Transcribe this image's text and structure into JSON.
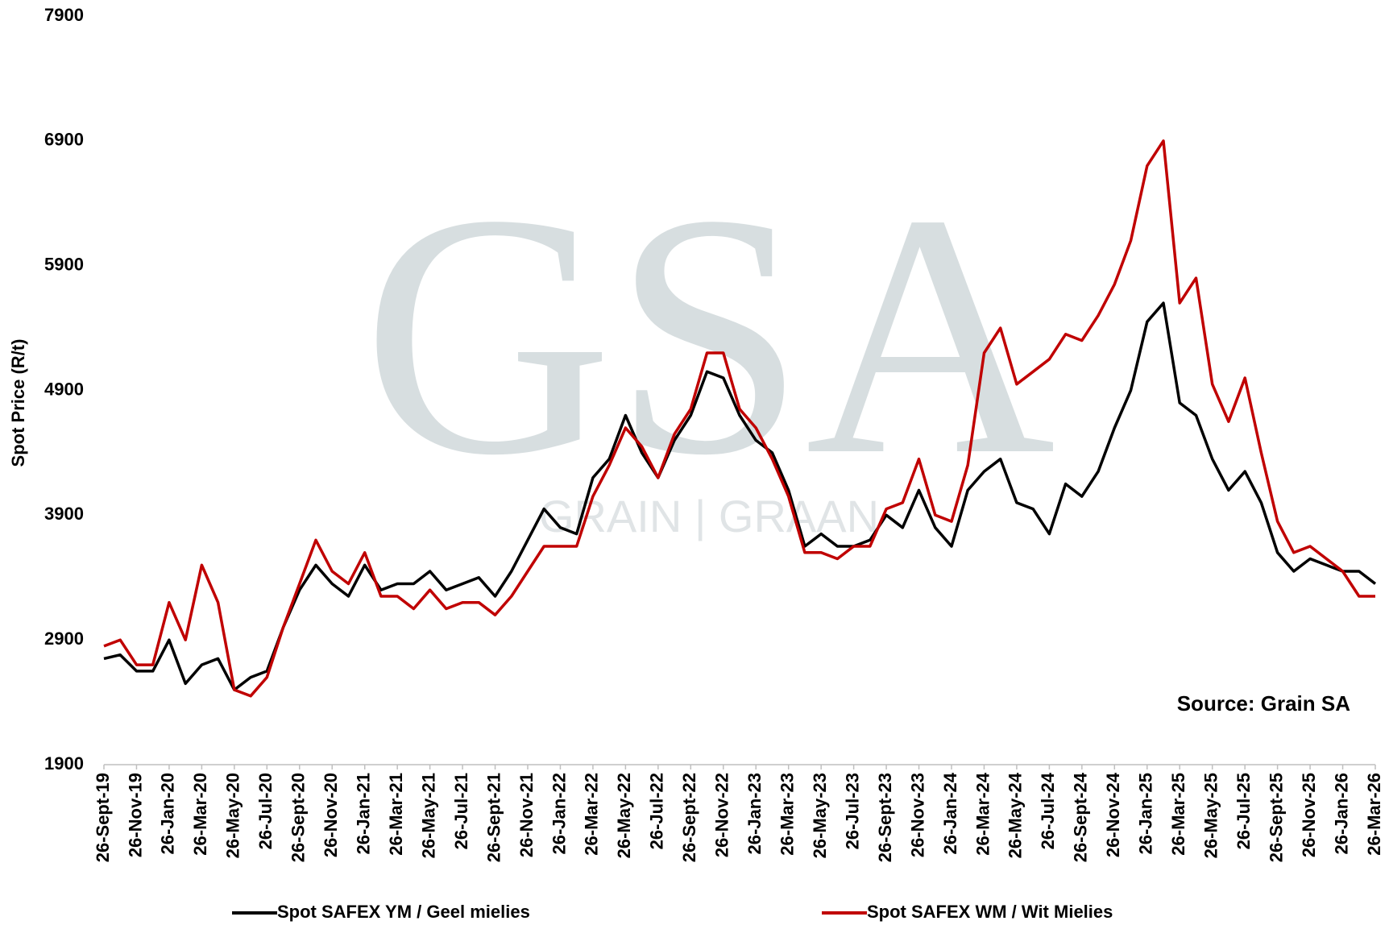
{
  "chart_data": {
    "type": "line",
    "y_label": "Spot Price (R/t)",
    "annotation": "Source: Grain SA",
    "watermark": {
      "logo": "GSA",
      "text": "GRAIN | GRAAN"
    },
    "ylim": [
      1900,
      7900
    ],
    "yticks": [
      1900,
      2900,
      3900,
      4900,
      5900,
      6900,
      7900
    ],
    "categories": [
      "26-Sept-19",
      null,
      "26-Nov-19",
      null,
      "26-Jan-20",
      null,
      "26-Mar-20",
      null,
      "26-May-20",
      null,
      "26-Jul-20",
      null,
      "26-Sept-20",
      null,
      "26-Nov-20",
      null,
      "26-Jan-21",
      null,
      "26-Mar-21",
      null,
      "26-May-21",
      null,
      "26-Jul-21",
      null,
      "26-Sept-21",
      null,
      "26-Nov-21",
      null,
      "26-Jan-22",
      null,
      "26-Mar-22",
      null,
      "26-May-22",
      null,
      "26-Jul-22",
      null,
      "26-Sept-22",
      null,
      "26-Nov-22",
      null,
      "26-Jan-23",
      null,
      "26-Mar-23",
      null,
      "26-May-23",
      null,
      "26-Jul-23",
      null,
      "26-Sept-23",
      null,
      "26-Nov-23",
      null,
      "26-Jan-24",
      null,
      "26-Mar-24",
      null,
      "26-May-24",
      null,
      "26-Jul-24",
      null,
      "26-Sept-24",
      null,
      "26-Nov-24",
      null,
      "26-Jan-25",
      null,
      "26-Mar-25",
      null,
      "26-May-25",
      null,
      "26-Jul-25",
      null,
      "26-Sept-25",
      null,
      "26-Nov-25",
      null,
      "26-Jan-26",
      null,
      "26-Mar-26"
    ],
    "series": [
      {
        "name": "Spot SAFEX YM / Geel mielies",
        "color": "#000000",
        "values": [
          2750,
          2780,
          2650,
          2650,
          2900,
          2550,
          2700,
          2750,
          2500,
          2600,
          2650,
          3000,
          3300,
          3500,
          3350,
          3250,
          3500,
          3300,
          3350,
          3350,
          3450,
          3300,
          3350,
          3400,
          3250,
          3450,
          3700,
          3950,
          3800,
          3750,
          4200,
          4350,
          4700,
          4400,
          4200,
          4500,
          4700,
          5050,
          5000,
          4700,
          4500,
          4400,
          4100,
          3650,
          3750,
          3650,
          3650,
          3700,
          3900,
          3800,
          4100,
          3800,
          3650,
          4100,
          4250,
          4350,
          4000,
          3950,
          3750,
          4150,
          4050,
          4250,
          4600,
          4900,
          5450,
          5600,
          4800,
          4700,
          4350,
          4100,
          4250,
          4000,
          3600,
          3450,
          3550,
          3500,
          3450,
          3450,
          3350
        ]
      },
      {
        "name": "Spot SAFEX WM / Wit Mielies",
        "color": "#c00000",
        "values": [
          2850,
          2900,
          2700,
          2700,
          3200,
          2900,
          3500,
          3200,
          2500,
          2450,
          2600,
          3000,
          3350,
          3700,
          3450,
          3350,
          3600,
          3250,
          3250,
          3150,
          3300,
          3150,
          3200,
          3200,
          3100,
          3250,
          3450,
          3650,
          3650,
          3650,
          4050,
          4300,
          4600,
          4450,
          4200,
          4550,
          4750,
          5200,
          5200,
          4750,
          4600,
          4350,
          4050,
          3600,
          3600,
          3550,
          3650,
          3650,
          3950,
          4000,
          4350,
          3900,
          3850,
          4300,
          5200,
          5400,
          4950,
          5050,
          5150,
          5350,
          5300,
          5500,
          5750,
          6100,
          6700,
          6900,
          5600,
          5800,
          4950,
          4650,
          5000,
          4400,
          3850,
          3600,
          3650,
          3550,
          3450,
          3250,
          3250
        ]
      }
    ]
  }
}
